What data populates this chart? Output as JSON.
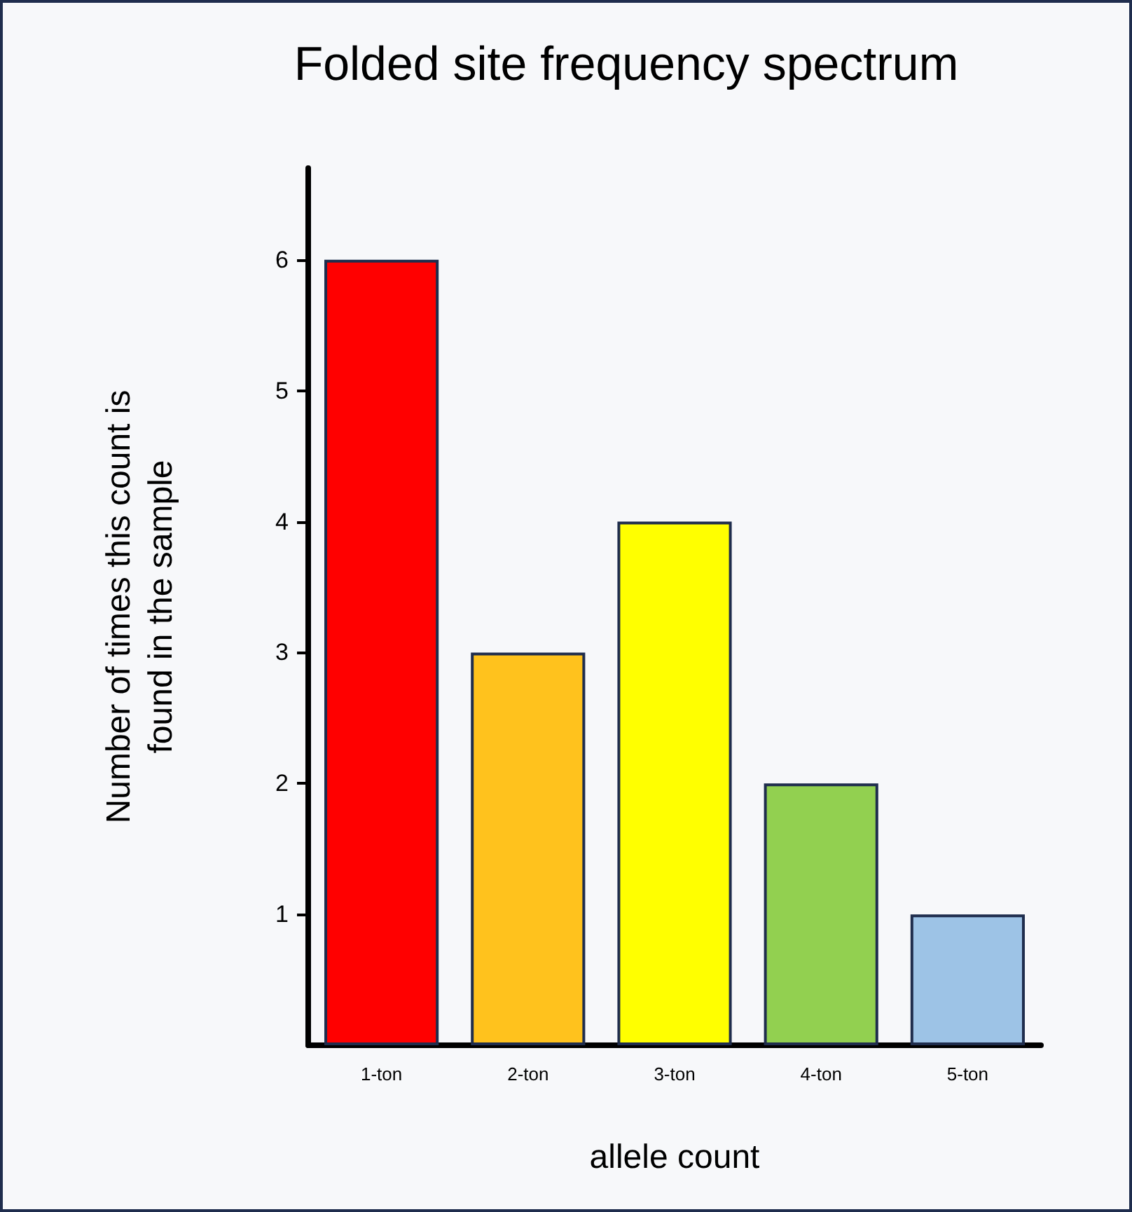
{
  "chart_data": {
    "type": "bar",
    "title": "Folded site frequency spectrum",
    "xlabel": "allele count",
    "ylabel": "Number of times this count is\nfound in the sample",
    "categories": [
      "1-ton",
      "2-ton",
      "3-ton",
      "4-ton",
      "5-ton"
    ],
    "values": [
      6,
      3,
      4,
      2,
      1
    ],
    "colors": [
      "#ff0000",
      "#ffc21d",
      "#ffff00",
      "#92d050",
      "#9dc3e6"
    ],
    "ylim": [
      0,
      6.7
    ],
    "yticks": [
      1,
      2,
      3,
      4,
      5,
      6
    ]
  }
}
